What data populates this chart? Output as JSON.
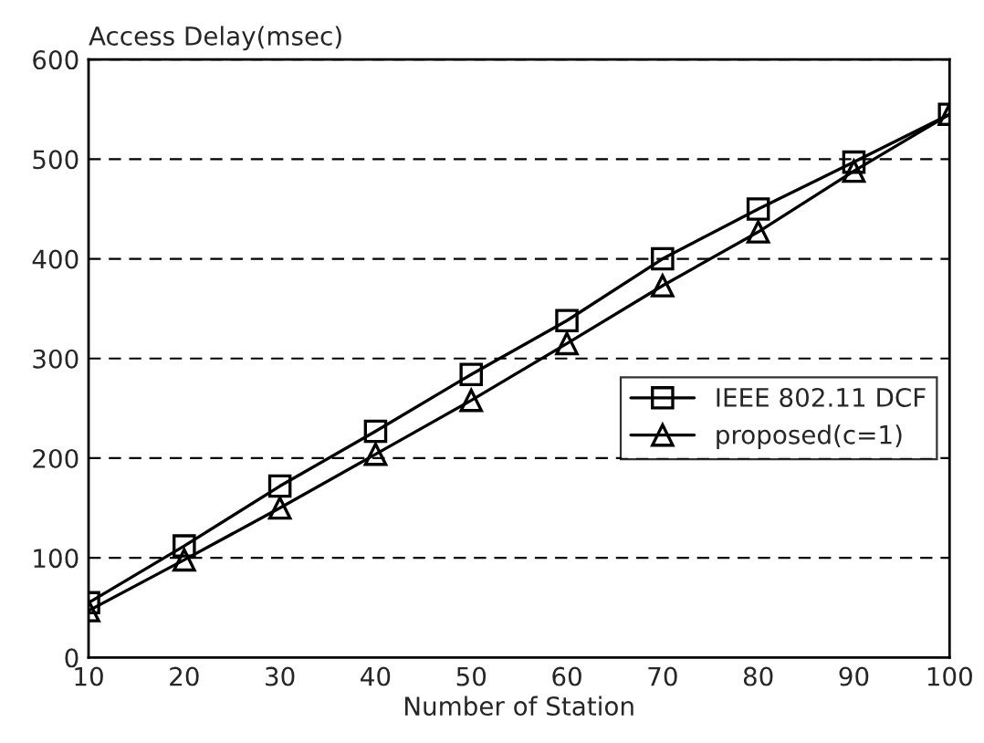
{
  "chart_data": {
    "type": "line",
    "xlabel": "Number of Station",
    "ylabel": "Access Delay(msec)",
    "x": [
      10,
      20,
      30,
      40,
      50,
      60,
      70,
      80,
      90,
      100
    ],
    "series": [
      {
        "name": "IEEE 802.11 DCF",
        "color": "#000000",
        "marker": "square",
        "values": [
          55,
          112,
          172,
          227,
          284,
          338,
          400,
          450,
          497,
          545
        ]
      },
      {
        "name": "proposed(c=1)",
        "color": "#000000",
        "marker": "triangle",
        "values": [
          47,
          98,
          150,
          204,
          258,
          315,
          373,
          427,
          488,
          545
        ]
      }
    ],
    "xlim": [
      10,
      100
    ],
    "xticks": [
      10,
      20,
      30,
      40,
      50,
      60,
      70,
      80,
      90,
      100
    ],
    "ylim": [
      0,
      600
    ],
    "yticks": [
      0,
      100,
      200,
      300,
      400,
      500,
      600
    ],
    "grid": "y",
    "legend": "right",
    "line_style": "solid"
  }
}
